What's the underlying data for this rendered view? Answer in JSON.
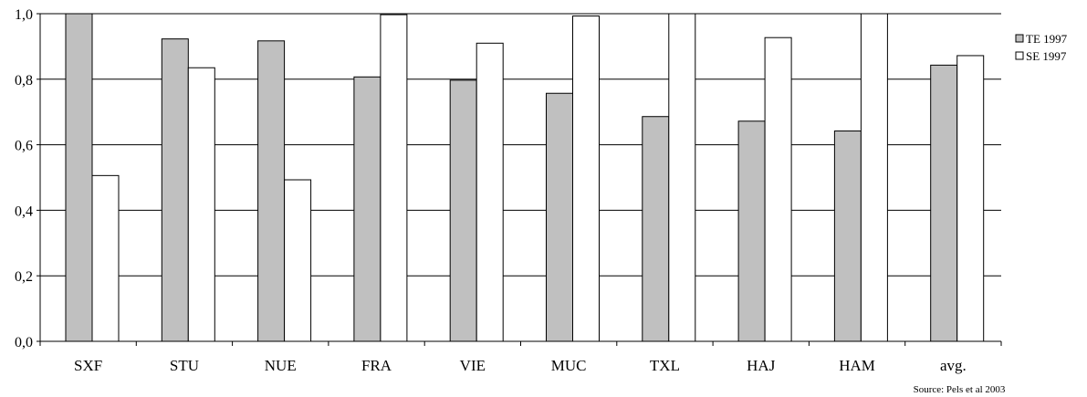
{
  "chart_data": {
    "type": "bar",
    "title": "",
    "xlabel": "",
    "ylabel": "",
    "categories": [
      "SXF",
      "STU",
      "NUE",
      "FRA",
      "VIE",
      "MUC",
      "TXL",
      "HAJ",
      "HAM",
      "avg."
    ],
    "series": [
      {
        "name": "TE 1997",
        "color": "#c0c0c0",
        "values": [
          1.0,
          0.923,
          0.917,
          0.807,
          0.797,
          0.757,
          0.686,
          0.672,
          0.642,
          0.843
        ]
      },
      {
        "name": "SE 1997",
        "color": "#ffffff",
        "values": [
          0.506,
          0.835,
          0.493,
          0.997,
          0.91,
          0.993,
          1.0,
          0.927,
          1.0,
          0.872
        ]
      }
    ],
    "ylim": [
      0,
      1.0
    ],
    "yticks": [
      {
        "value": 0.0,
        "label": "0,0"
      },
      {
        "value": 0.2,
        "label": "0,2"
      },
      {
        "value": 0.4,
        "label": "0,4"
      },
      {
        "value": 0.6,
        "label": "0,6"
      },
      {
        "value": 0.8,
        "label": "0,8"
      },
      {
        "value": 1.0,
        "label": "1,0"
      }
    ],
    "grid": true,
    "legend_position": "right"
  },
  "source_note": "Source: Pels et al 2003"
}
